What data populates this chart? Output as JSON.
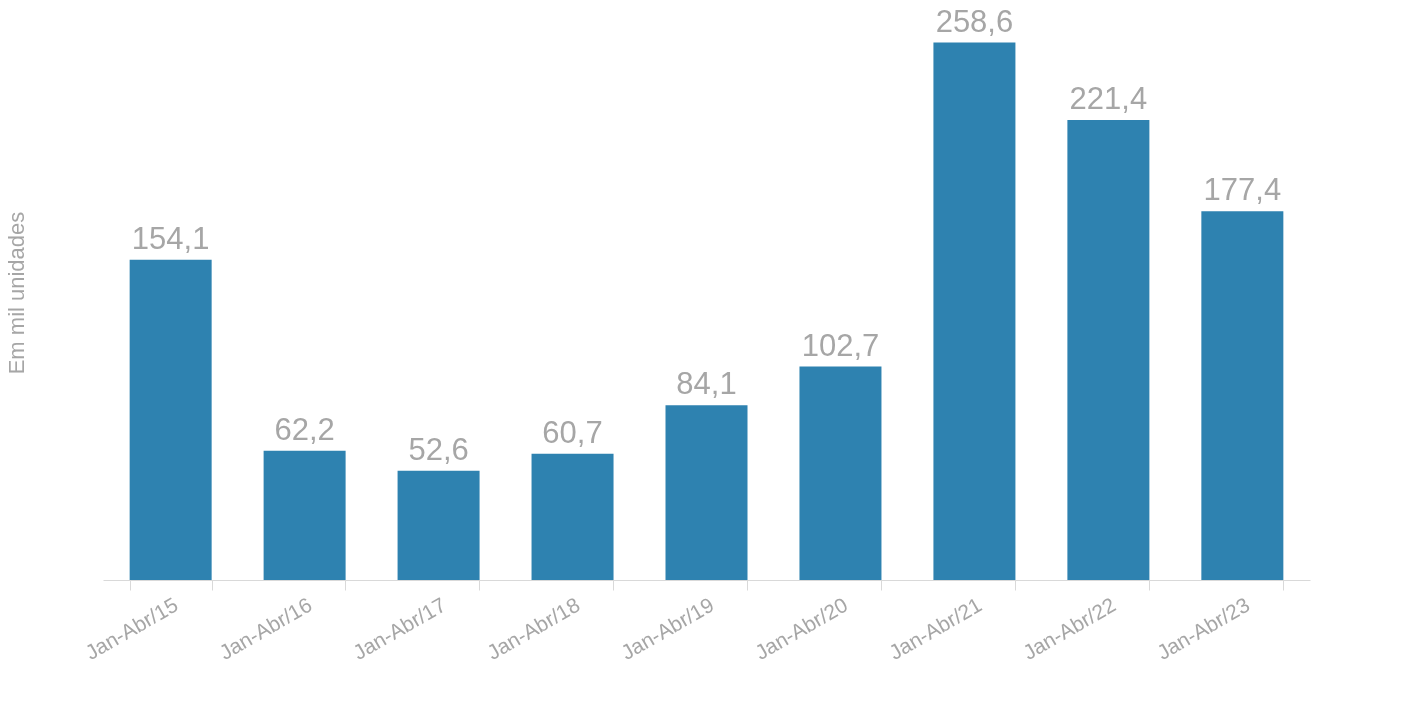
{
  "chart_data": {
    "type": "bar",
    "ylabel": "Em mil unidades",
    "categories": [
      "Jan-Abr/15",
      "Jan-Abr/16",
      "Jan-Abr/17",
      "Jan-Abr/18",
      "Jan-Abr/19",
      "Jan-Abr/20",
      "Jan-Abr/21",
      "Jan-Abr/22",
      "Jan-Abr/23"
    ],
    "values": [
      154.1,
      62.2,
      52.6,
      60.7,
      84.1,
      102.7,
      258.6,
      221.4,
      177.4
    ],
    "value_labels": [
      "154,1",
      "62,2",
      "52,6",
      "60,7",
      "84,1",
      "102,7",
      "258,6",
      "221,4",
      "177,4"
    ],
    "color": "#2e82b0",
    "grid": false
  }
}
